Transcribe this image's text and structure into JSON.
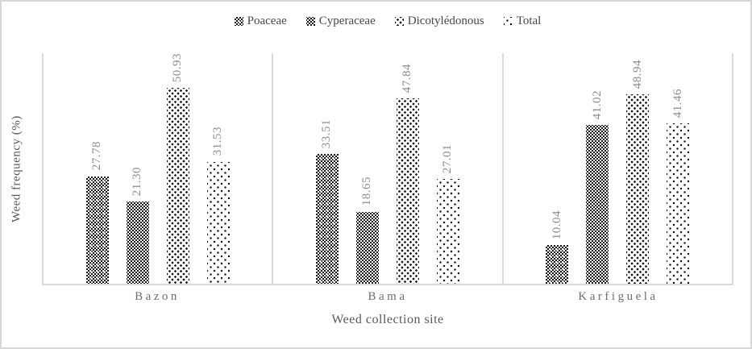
{
  "chart_data": {
    "type": "bar",
    "title": "",
    "xlabel": "Weed collection site",
    "ylabel": "Weed frequency (%)",
    "ylim": [
      0,
      60
    ],
    "grid": false,
    "legend_position": "top",
    "value_labels": "rotated-90-above-bars",
    "value_label_decimals": 2,
    "categories": [
      "Bazon",
      "Bama",
      "Karfiguela"
    ],
    "series": [
      {
        "name": "Poaceae",
        "pattern": "poaceae",
        "values": [
          27.78,
          33.51,
          10.04
        ]
      },
      {
        "name": "Cyperaceae",
        "pattern": "cyperaceae",
        "values": [
          21.3,
          18.65,
          41.02
        ]
      },
      {
        "name": "Dicotylédonous",
        "pattern": "dicot",
        "values": [
          50.93,
          47.84,
          48.94
        ]
      },
      {
        "name": "Total",
        "pattern": "total",
        "values": [
          31.53,
          27.01,
          41.46
        ]
      }
    ]
  },
  "colors": {
    "axis_line": "#d9d9d9",
    "figure_border": "#d7d7d7",
    "value_label_text": "#8c8c8c",
    "category_label_text": "#6e6e6e",
    "axis_title_text": "#595959",
    "legend_text": "#474747",
    "bar_pattern_ink": "#161616",
    "background": "#ffffff"
  }
}
